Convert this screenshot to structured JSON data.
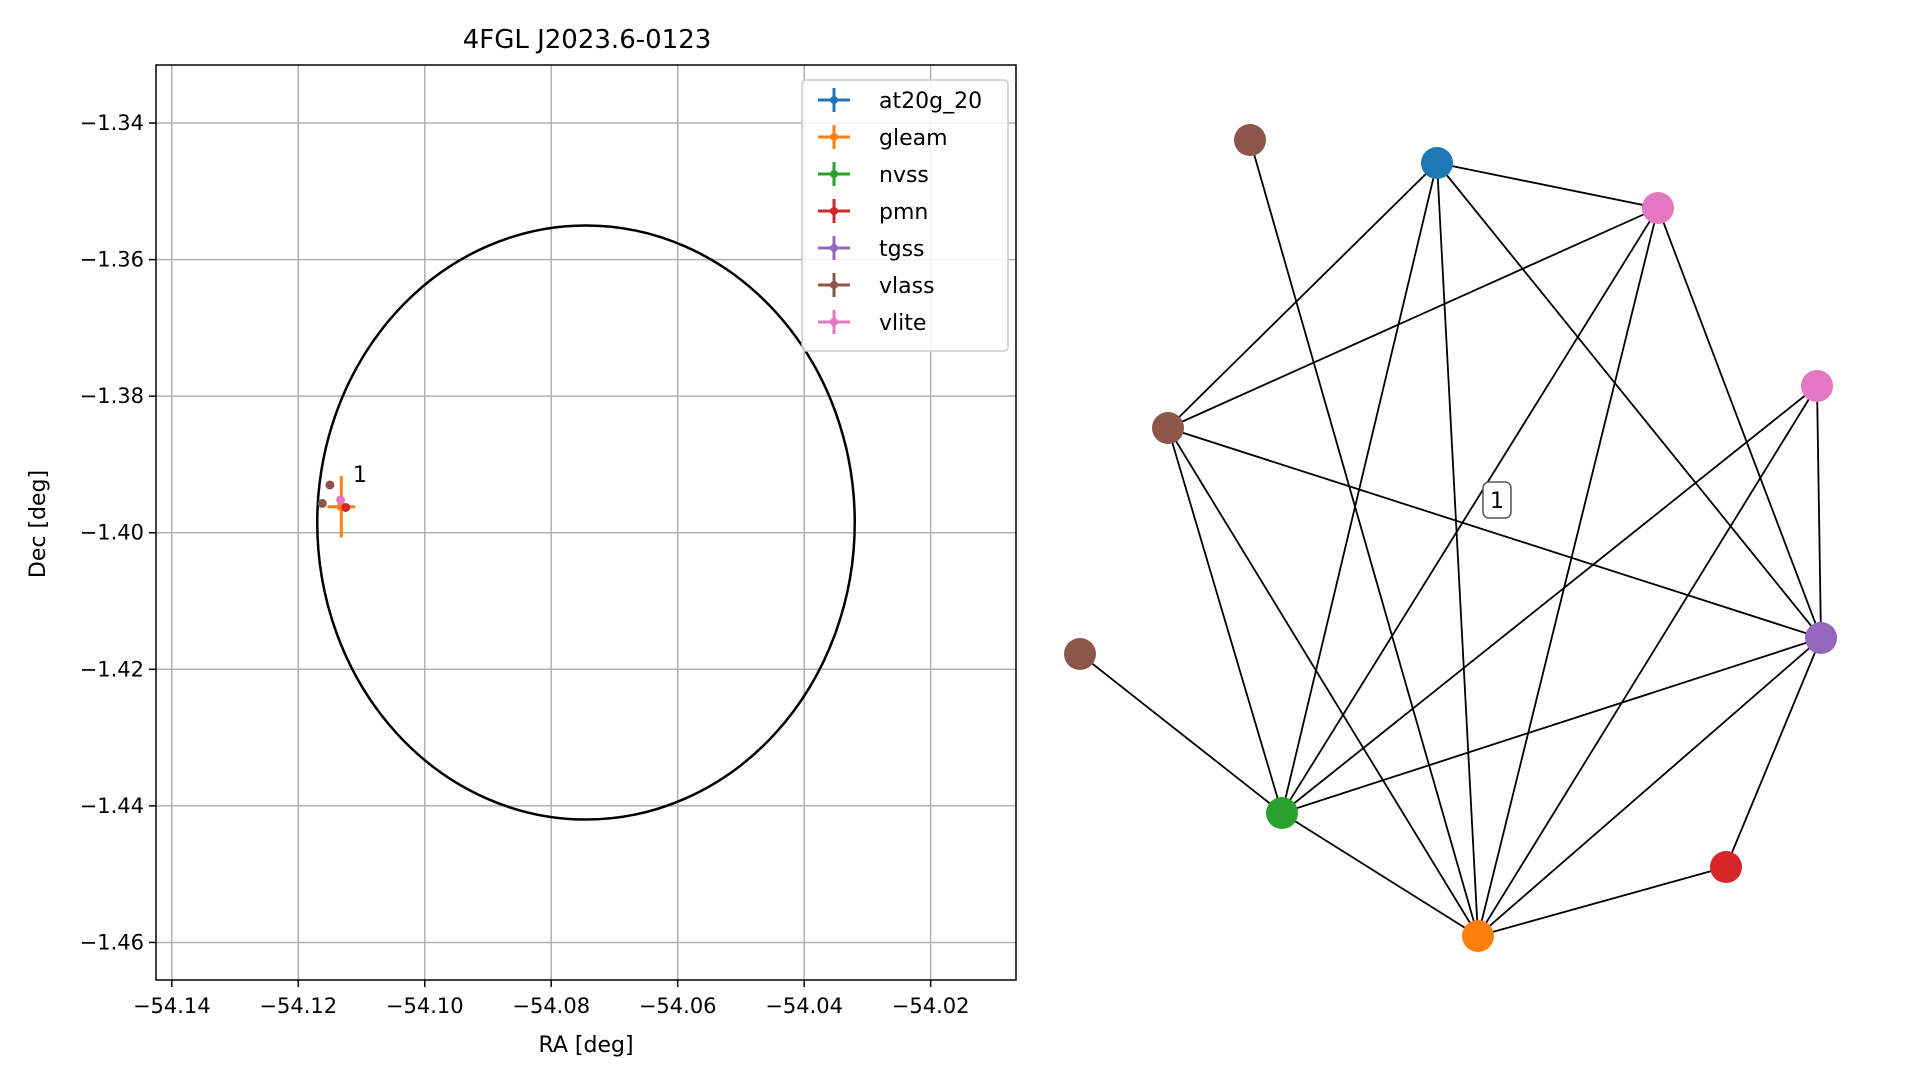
{
  "chart_data": [
    {
      "type": "scatter",
      "title": "4FGL J2023.6-0123",
      "xlabel": "RA [deg]",
      "ylabel": "Dec [deg]",
      "xlim": [
        -54.1425,
        -54.0065
      ],
      "ylim": [
        -1.4655,
        -1.3315
      ],
      "xticks": [
        -54.14,
        -54.12,
        -54.1,
        -54.08,
        -54.06,
        -54.04,
        -54.02
      ],
      "xtick_labels": [
        "−54.14",
        "−54.12",
        "−54.10",
        "−54.08",
        "−54.06",
        "−54.04",
        "−54.02"
      ],
      "yticks": [
        -1.34,
        -1.36,
        -1.38,
        -1.4,
        -1.42,
        -1.44,
        -1.46
      ],
      "ytick_labels": [
        "−1.34",
        "−1.36",
        "−1.38",
        "−1.40",
        "−1.42",
        "−1.44",
        "−1.46"
      ],
      "grid": true,
      "legend_placement": "upper-right",
      "error_ellipse": {
        "center": [
          -54.0745,
          -1.3985
        ],
        "semi_axes": [
          0.0425,
          0.0435
        ]
      },
      "series": [
        {
          "name": "at20g_20",
          "color": "#1f77b4",
          "points": []
        },
        {
          "name": "gleam",
          "color": "#ff7f0e",
          "points": [
            {
              "x": -54.1132,
              "y": -1.3962,
              "xerr": 0.0022,
              "yerr": 0.0045
            }
          ]
        },
        {
          "name": "nvss",
          "color": "#2ca02c",
          "points": []
        },
        {
          "name": "pmn",
          "color": "#d62728",
          "points": [
            {
              "x": -54.1125,
              "y": -1.3963,
              "xerr": 0,
              "yerr": 0
            }
          ]
        },
        {
          "name": "tgss",
          "color": "#9467bd",
          "points": []
        },
        {
          "name": "vlass",
          "color": "#8c564b",
          "points": [
            {
              "x": -54.115,
              "y": -1.393,
              "xerr": 0,
              "yerr": 0
            },
            {
              "x": -54.1162,
              "y": -1.3957,
              "xerr": 0,
              "yerr": 0
            }
          ]
        },
        {
          "name": "vlite",
          "color": "#e377c2",
          "points": [
            {
              "x": -54.1133,
              "y": -1.3952,
              "xerr": 0,
              "yerr": 0
            }
          ]
        }
      ],
      "annotations": [
        {
          "text": "1",
          "x": -54.112,
          "y": -1.392
        }
      ]
    },
    {
      "type": "network",
      "label": "1",
      "nodes": [
        {
          "id": "n0",
          "color": "#1f77b4"
        },
        {
          "id": "n1",
          "color": "#e377c2"
        },
        {
          "id": "n2",
          "color": "#e377c2"
        },
        {
          "id": "n3",
          "color": "#9467bd"
        },
        {
          "id": "n4",
          "color": "#d62728"
        },
        {
          "id": "n5",
          "color": "#ff7f0e"
        },
        {
          "id": "n6",
          "color": "#2ca02c"
        },
        {
          "id": "n7",
          "color": "#8c564b"
        },
        {
          "id": "n8",
          "color": "#8c564b"
        },
        {
          "id": "n9",
          "color": "#8c564b"
        }
      ],
      "edges": [
        [
          "n0",
          "n1"
        ],
        [
          "n0",
          "n3"
        ],
        [
          "n0",
          "n5"
        ],
        [
          "n0",
          "n6"
        ],
        [
          "n0",
          "n8"
        ],
        [
          "n1",
          "n3"
        ],
        [
          "n1",
          "n5"
        ],
        [
          "n1",
          "n6"
        ],
        [
          "n1",
          "n8"
        ],
        [
          "n2",
          "n3"
        ],
        [
          "n2",
          "n5"
        ],
        [
          "n2",
          "n6"
        ],
        [
          "n3",
          "n4"
        ],
        [
          "n3",
          "n5"
        ],
        [
          "n3",
          "n6"
        ],
        [
          "n3",
          "n8"
        ],
        [
          "n5",
          "n6"
        ],
        [
          "n5",
          "n8"
        ],
        [
          "n5",
          "n9"
        ],
        [
          "n5",
          "n4"
        ],
        [
          "n6",
          "n7"
        ],
        [
          "n6",
          "n8"
        ]
      ]
    }
  ]
}
